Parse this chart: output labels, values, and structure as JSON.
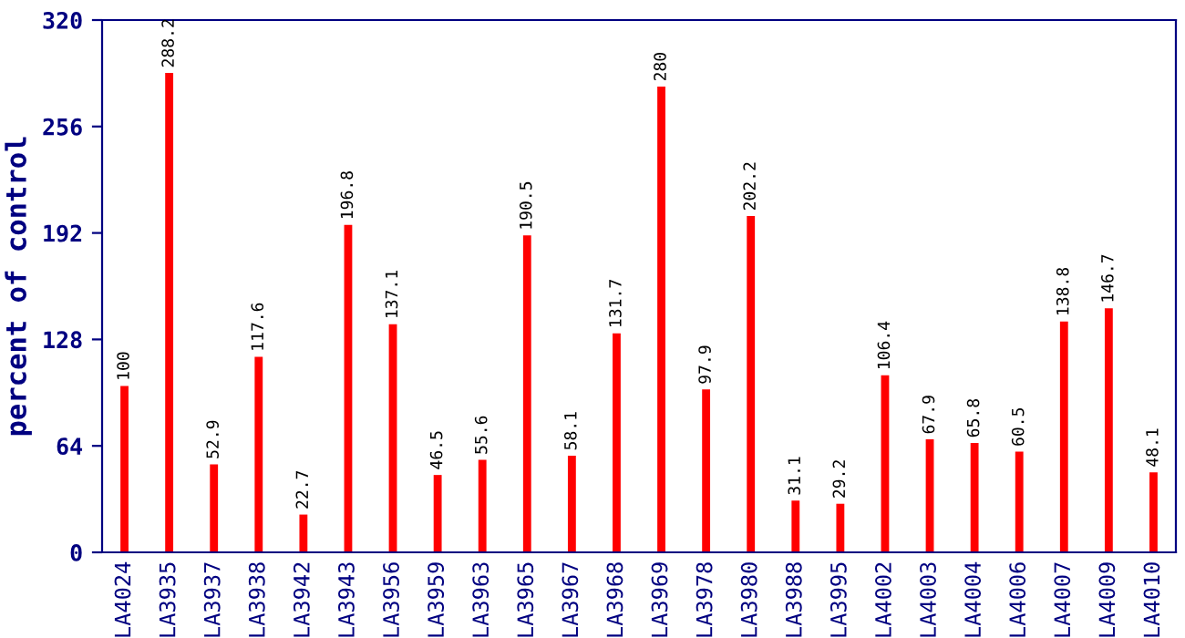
{
  "chart_data": {
    "type": "bar",
    "ylabel": "percent of control",
    "categories": [
      "LA4024",
      "LA3935",
      "LA3937",
      "LA3938",
      "LA3942",
      "LA3943",
      "LA3956",
      "LA3959",
      "LA3963",
      "LA3965",
      "LA3967",
      "LA3968",
      "LA3969",
      "LA3978",
      "LA3980",
      "LA3988",
      "LA3995",
      "LA4002",
      "LA4003",
      "LA4004",
      "LA4006",
      "LA4007",
      "LA4009",
      "LA4010"
    ],
    "values": [
      100,
      288.2,
      52.9,
      117.6,
      22.7,
      196.8,
      137.1,
      46.5,
      55.6,
      190.5,
      58.1,
      131.7,
      280,
      97.9,
      202.2,
      31.1,
      29.2,
      106.4,
      67.9,
      65.8,
      60.5,
      138.8,
      146.7,
      48.1
    ],
    "color": "#ff0000",
    "ylim": [
      0,
      320
    ],
    "yticks": [
      0,
      64,
      128,
      192,
      256,
      320
    ],
    "grid": false,
    "data_labels": true
  }
}
